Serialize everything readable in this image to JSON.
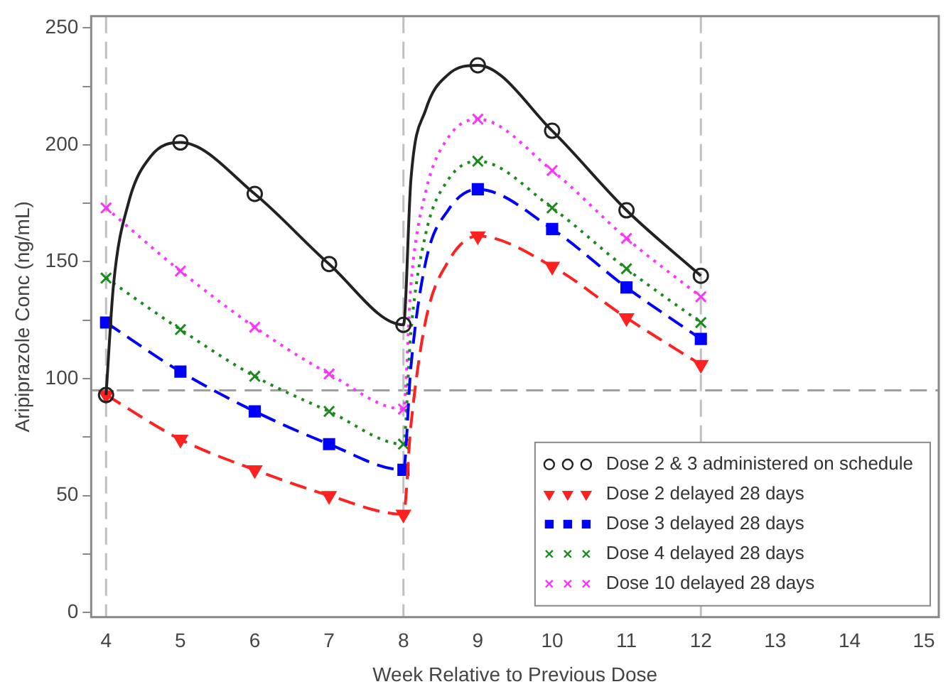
{
  "chart_data": {
    "type": "line",
    "xlabel": "Week Relative to Previous Dose",
    "ylabel": "Aripiprazole Conc (ng/mL)",
    "xlim": [
      3.8,
      15.2
    ],
    "xticks": [
      4,
      5,
      6,
      7,
      8,
      9,
      10,
      11,
      12,
      13,
      14,
      15
    ],
    "ylim": [
      -2,
      255
    ],
    "yticks": [
      0,
      {
        "value": 25,
        "label": null
      },
      50,
      {
        "value": 75,
        "label": null
      },
      100,
      {
        "value": 125,
        "label": null
      },
      150,
      {
        "value": 175,
        "label": null
      },
      200,
      {
        "value": 225,
        "label": null
      },
      250
    ],
    "grid": false,
    "legend": "bottom right",
    "ref_lines": [
      {
        "axis": "y",
        "value": 95,
        "color": "#a0a0a0",
        "line_style": "dashed"
      },
      {
        "axis": "x",
        "value": 4,
        "color": "#c0c0c0",
        "line_style": "dashed"
      },
      {
        "axis": "x",
        "value": 8,
        "color": "#c0c0c0",
        "line_style": "dashed"
      },
      {
        "axis": "x",
        "value": 12,
        "color": "#c0c0c0",
        "line_style": "dashed"
      }
    ],
    "series": [
      {
        "name": "Dose 2 & 3 administered on schedule",
        "color": "#222222",
        "marker": "circle",
        "line_style": "solid",
        "x": [
          4,
          4.1,
          4.3,
          4.6,
          5,
          6,
          7,
          8,
          8.1,
          8.3,
          8.6,
          9,
          10,
          11,
          12
        ],
        "values": [
          93,
          140,
          175,
          195,
          201,
          179,
          149,
          123,
          185,
          215,
          230,
          234,
          206,
          172,
          144
        ]
      },
      {
        "name": "Dose 2 delayed 28 days",
        "color": "#ff2020",
        "marker": "triangle",
        "line_style": "dashed",
        "x": [
          4,
          5,
          6,
          7,
          8,
          8.1,
          8.3,
          8.6,
          9,
          10,
          11,
          12
        ],
        "values": [
          93,
          74,
          61,
          50,
          42,
          80,
          125,
          150,
          161,
          148,
          126,
          106
        ]
      },
      {
        "name": "Dose 3 delayed 28 days",
        "color": "#0000ff",
        "marker": "square",
        "line_style": "dashed",
        "x": [
          4,
          5,
          6,
          7,
          8,
          8.1,
          8.3,
          8.6,
          9,
          10,
          11,
          12
        ],
        "values": [
          124,
          103,
          86,
          72,
          61,
          105,
          150,
          172,
          181,
          164,
          139,
          117
        ]
      },
      {
        "name": "Dose 4 delayed 28 days",
        "color": "#1a8a1a",
        "marker": "cross",
        "line_style": "dotted",
        "x": [
          4,
          5,
          6,
          7,
          8,
          8.1,
          8.3,
          8.6,
          9,
          10,
          11,
          12
        ],
        "values": [
          143,
          121,
          101,
          86,
          72,
          120,
          162,
          185,
          193,
          173,
          147,
          124
        ]
      },
      {
        "name": "Dose 10 delayed 28 days",
        "color": "#ff33ff",
        "marker": "cross",
        "line_style": "dotted",
        "x": [
          4,
          5,
          6,
          7,
          8,
          8.1,
          8.3,
          8.6,
          9,
          10,
          11,
          12
        ],
        "values": [
          173,
          146,
          122,
          102,
          87,
          140,
          180,
          203,
          211,
          189,
          160,
          135
        ]
      }
    ]
  }
}
